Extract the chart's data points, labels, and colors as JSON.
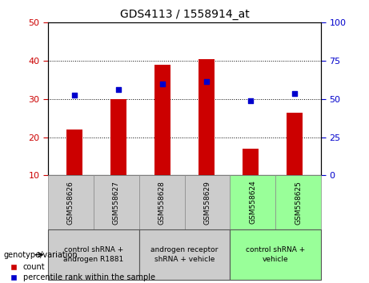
{
  "title": "GDS4113 / 1558914_at",
  "samples": [
    "GSM558626",
    "GSM558627",
    "GSM558628",
    "GSM558629",
    "GSM558624",
    "GSM558625"
  ],
  "counts": [
    22,
    30,
    39,
    40.5,
    17,
    26.5
  ],
  "percentile_left_vals": [
    31,
    32.5,
    34,
    34.5,
    29.5,
    31.5
  ],
  "ylim_left": [
    10,
    50
  ],
  "ylim_right": [
    0,
    100
  ],
  "yticks_left": [
    10,
    20,
    30,
    40,
    50
  ],
  "yticks_right": [
    0,
    25,
    50,
    75,
    100
  ],
  "bar_color": "#cc0000",
  "dot_color": "#0000cc",
  "bar_width": 0.35,
  "groups": [
    {
      "label": "control shRNA +\nandrogen R1881",
      "span": [
        0,
        2
      ],
      "color": "#cccccc"
    },
    {
      "label": "androgen receptor\nshRNA + vehicle",
      "span": [
        2,
        4
      ],
      "color": "#cccccc"
    },
    {
      "label": "control shRNA +\nvehicle",
      "span": [
        4,
        6
      ],
      "color": "#99ff99"
    }
  ],
  "group_box_color_1": "#cccccc",
  "group_box_color_2": "#99ff99",
  "legend_count_label": "count",
  "legend_percentile_label": "percentile rank within the sample",
  "genotype_label": "genotype/variation",
  "left_tick_color": "#cc0000",
  "right_tick_color": "#0000cc",
  "grid_style": "dotted",
  "grid_color": "#000000",
  "background_color": "#ffffff",
  "plot_bg_color": "#ffffff"
}
